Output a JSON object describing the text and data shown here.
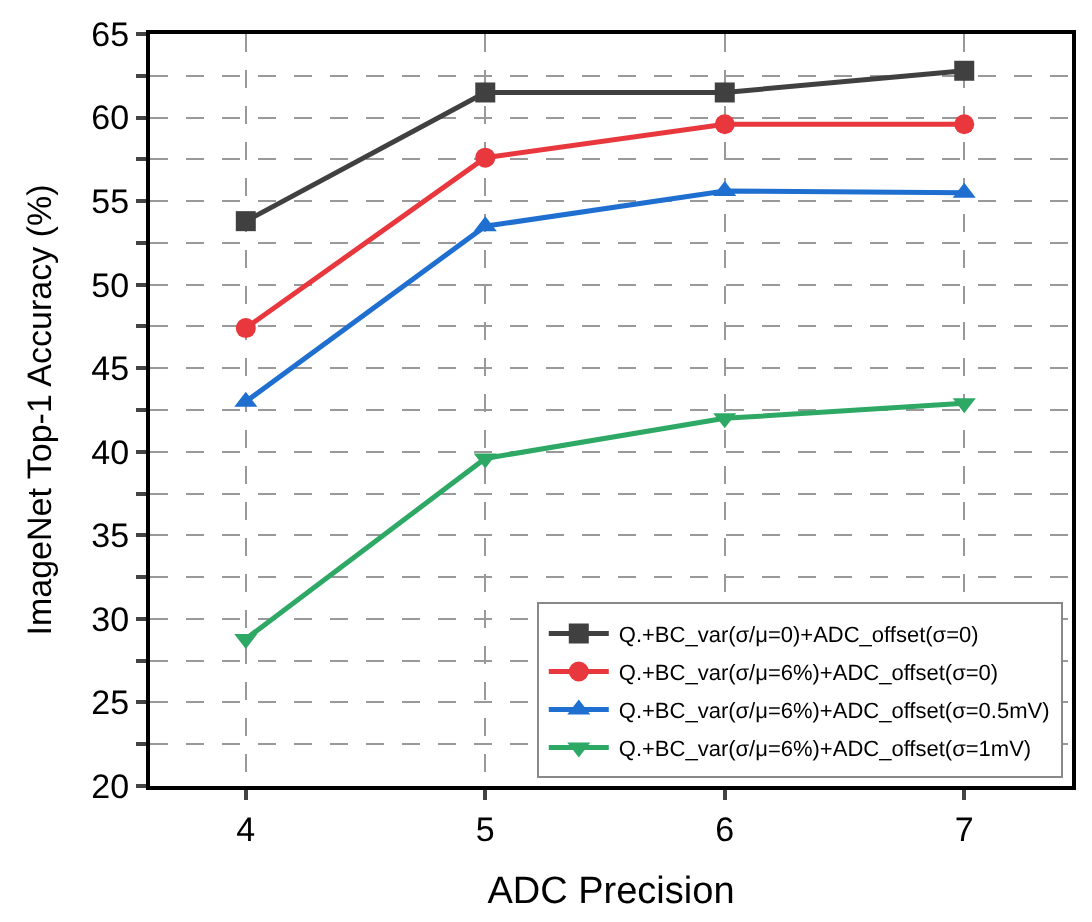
{
  "chart_data": {
    "type": "line",
    "xlabel": "ADC Precision",
    "ylabel": "ImageNet Top-1 Accuracy (%)",
    "x": [
      4,
      5,
      6,
      7
    ],
    "series": [
      {
        "name": "Q.+BC_var(σ/μ=0)+ADC_offset(σ=0)",
        "color": "#404040",
        "marker": "square",
        "values": [
          53.8,
          61.5,
          61.5,
          62.8
        ]
      },
      {
        "name": "Q.+BC_var(σ/μ=6%)+ADC_offset(σ=0)",
        "color": "#e8383d",
        "marker": "circle",
        "values": [
          47.4,
          57.6,
          59.6,
          59.6
        ]
      },
      {
        "name": "Q.+BC_var(σ/μ=6%)+ADC_offset(σ=0.5mV)",
        "color": "#1f6fd1",
        "marker": "triangle",
        "values": [
          43.0,
          53.5,
          55.6,
          55.5
        ]
      },
      {
        "name": "Q.+BC_var(σ/μ=6%)+ADC_offset(σ=1mV)",
        "color": "#2ea865",
        "marker": "triangle-down",
        "values": [
          28.8,
          39.6,
          42.0,
          42.9
        ]
      }
    ],
    "xlim": [
      3.6,
      7.45
    ],
    "xticks": [
      4,
      5,
      6,
      7
    ],
    "ylim": [
      20,
      65
    ],
    "yticks": [
      20,
      {
        "value": 22.5,
        "label": null
      },
      25,
      {
        "value": 27.5,
        "label": null
      },
      30,
      {
        "value": 32.5,
        "label": null
      },
      35,
      {
        "value": 37.5,
        "label": null
      },
      40,
      {
        "value": 42.5,
        "label": null
      },
      45,
      {
        "value": 47.5,
        "label": null
      },
      50,
      {
        "value": 52.5,
        "label": null
      },
      55,
      {
        "value": 57.5,
        "label": null
      },
      60,
      {
        "value": 62.5,
        "label": null
      },
      65
    ],
    "grid": true,
    "legend": "bottom right",
    "line_style": "solid"
  }
}
